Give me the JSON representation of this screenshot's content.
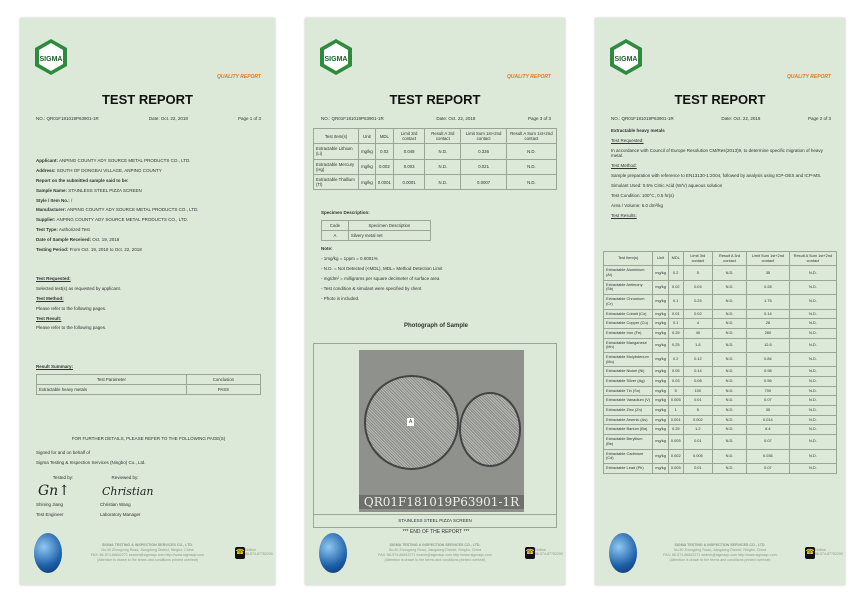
{
  "common": {
    "quality": "QUALITY REPORT",
    "title": "TEST REPORT",
    "no": "NO.: QR01F181019P63901-1R",
    "date": "Date: Oct. 22, 2018",
    "logo": "SIGMA",
    "footer": {
      "company": "SIGMA TESTING & INSPECTION SERVICES CO., LTD.",
      "address": "No.30 Zhongxing Road, Jiangdong District, Ningbo, China",
      "contact": "FAX: 86-574-86842271   search@sigmaqc.com   http://www.sigmaqc.com",
      "attention": "(Attention is drawn to the terms and conditions printed overleaf)",
      "hotline_label": "Hotline",
      "hotline": "86-574-87782290"
    }
  },
  "page1": {
    "page": "Page 1 of 3",
    "fields": [
      {
        "k": "Applicant:",
        "v": " ANPING COUNTY ADY SOURCE METAL PRODUCTS CO., LTD."
      },
      {
        "k": "Address:",
        "v": " SOUTH OF DONGBAI VILLAGE, ANPING COUNTY"
      },
      {
        "k": "Report on the submitted sample said to be:",
        "v": ""
      },
      {
        "k": "Sample Name:",
        "v": " STAINLESS STEEL PIZZA SCREEN"
      },
      {
        "k": "Style / Item No.:",
        "v": " /"
      },
      {
        "k": "Manufacturer:",
        "v": " ANPING COUNTY ADY SOURCE METAL PRODUCTS CO., LTD."
      },
      {
        "k": "Supplier:",
        "v": " ANPING COUNTY ADY SOURCE METAL PRODUCTS CO., LTD."
      },
      {
        "k": "Test Type:",
        "v": " Authorized Test"
      },
      {
        "k": "Date of Sample Received:",
        "v": " Oct. 19, 2018"
      },
      {
        "k": "Testing Period:",
        "v": " From Oct. 19, 2018 to Oct. 22, 2018"
      }
    ],
    "sections": [
      {
        "h": "Test Requested:",
        "t": "Selected test(s) as requested by applicant."
      },
      {
        "h": "Test Method:",
        "t": "Please refer to the following pages."
      },
      {
        "h": "Test Result:",
        "t": "Please refer to the following pages."
      }
    ],
    "summary_heading": "Result Summary:",
    "summary_headers": [
      "Test Parameter",
      "Conclusion"
    ],
    "summary_rows": [
      [
        "Extractable heavy metals",
        "PASS"
      ]
    ],
    "further": "FOR FURTHER DETAILS, PLEASE REFER TO THE FOLLOWING PAGE(S)",
    "signed1": "Signed for and on behalf of",
    "signed2": "Sigma Testing & Inspection Services (Ningbo) Co., Ltd.",
    "tested_by": "Tested by:",
    "reviewed_by": "Reviewed by:",
    "tester": "Shining Jiang",
    "tester_role": "Test Engineer",
    "reviewer": "Christian Wang",
    "reviewer_role": "Laboratory Manager"
  },
  "page2": {
    "page": "Page 3 of 3",
    "headers": [
      "Test Item(s)",
      "Unit",
      "MDL",
      "Limit 3rd contact",
      "Result A 3rd contact",
      "Limit Sum 1st+2nd contact",
      "Result A Sum 1st+2nd contact"
    ],
    "rows": [
      [
        "Extractable Lithium (Li)",
        "mg/kg",
        "0.02",
        "0.048",
        "N.D.",
        "0.336",
        "N.D."
      ],
      [
        "Extractable Mercury (Hg)",
        "mg/kg",
        "0.002",
        "0.003",
        "N.D.",
        "0.021",
        "N.D."
      ],
      [
        "Extractable Thallium (Tl)",
        "mg/kg",
        "0.0001",
        "0.0001",
        "N.D.",
        "0.0007",
        "N.D."
      ]
    ],
    "specimen_heading": "Specimen Description:",
    "specimen_headers": [
      "Code",
      "Specimen Description"
    ],
    "specimen_rows": [
      [
        "A",
        "Silvery metal net"
      ]
    ],
    "note_heading": "Note:",
    "notes": [
      "- 1mg/kg = 1ppm = 0.0001%",
      "- N.D. = Not Detected (<MDL), MDL= Method Detection Limit",
      "- mg/dm² = milligrams per square decimeter of surface area",
      "- Test condition & simulant were specified by client",
      "- Photo is included."
    ],
    "photo_heading": "Photograph of Sample",
    "photo_label": "A",
    "photo_code": "QR01F181019P63901-1R",
    "photo_caption": "STAINLESS STEEL PIZZA SCREEN",
    "end": "*** END OF THE REPORT ***"
  },
  "page3": {
    "page": "Page 2 of 3",
    "heading": "Extractable heavy metals",
    "lines": [
      {
        "u": "Test Requested:"
      },
      {
        "t": "In accordance with Council of Europe Resolution CM/Res(2013)9, to determine specific migration of heavy metal."
      },
      {
        "u": "Test Method:"
      },
      {
        "t": "Sample preparation with reference to EN13130-1:2004, followed by analysis using ICP-OES and ICP-MS."
      },
      {
        "t": "Simulant Used: 0.5% Citric Acid (W/V) aqueous solution"
      },
      {
        "t": "Test Condition: 100°C, 0.5 hr(s)"
      },
      {
        "t": "Area / Volume: 6.0 dm²/kg"
      },
      {
        "u": "Test Results:"
      }
    ],
    "headers": [
      "Test Item(s)",
      "Unit",
      "MDL",
      "Limit 3rd contact",
      "Result A 3rd contact",
      "Limit Sum 1st+2nd contact",
      "Result A Sum 1st+2nd contact"
    ],
    "rows": [
      [
        "Extractable Aluminium (Al)",
        "mg/kg",
        "0.2",
        "5",
        "N.D.",
        "35",
        "N.D."
      ],
      [
        "Extractable Antimony (Sb)",
        "mg/kg",
        "0.02",
        "0.04",
        "N.D.",
        "0.28",
        "N.D."
      ],
      [
        "Extractable Chromium (Cr)",
        "mg/kg",
        "0.1",
        "0.25",
        "N.D.",
        "1.75",
        "N.D."
      ],
      [
        "Extractable Cobalt (Co)",
        "mg/kg",
        "0.01",
        "0.02",
        "N.D.",
        "0.14",
        "N.D."
      ],
      [
        "Extractable Copper (Cu)",
        "mg/kg",
        "0.1",
        "4",
        "N.D.",
        "28",
        "N.D."
      ],
      [
        "Extractable Iron (Fe)",
        "mg/kg",
        "0.25",
        "40",
        "N.D.",
        "280",
        "N.D."
      ],
      [
        "Extractable Manganese (Mn)",
        "mg/kg",
        "0.25",
        "1.8",
        "N.D.",
        "12.6",
        "N.D."
      ],
      [
        "Extractable Molybdenum (Mo)",
        "mg/kg",
        "0.2",
        "0.12",
        "N.D.",
        "0.84",
        "N.D."
      ],
      [
        "Extractable Nickel (Ni)",
        "mg/kg",
        "0.05",
        "0.14",
        "N.D.",
        "0.98",
        "N.D."
      ],
      [
        "Extractable Silver (Ag)",
        "mg/kg",
        "0.03",
        "0.08",
        "N.D.",
        "0.56",
        "N.D."
      ],
      [
        "Extractable Tin (Sn)",
        "mg/kg",
        "5",
        "100",
        "N.D.",
        "700",
        "N.D."
      ],
      [
        "Extractable Vanadium (V)",
        "mg/kg",
        "0.005",
        "0.01",
        "N.D.",
        "0.07",
        "N.D."
      ],
      [
        "Extractable Zinc (Zn)",
        "mg/kg",
        "1",
        "5",
        "N.D.",
        "35",
        "N.D."
      ],
      [
        "Extractable Arsenic (As)",
        "mg/kg",
        "0.001",
        "0.002",
        "N.D.",
        "0.014",
        "N.D."
      ],
      [
        "Extractable Barium (Ba)",
        "mg/kg",
        "0.25",
        "1.2",
        "N.D.",
        "8.4",
        "N.D."
      ],
      [
        "Extractable Beryllium (Be)",
        "mg/kg",
        "0.005",
        "0.01",
        "N.D.",
        "0.07",
        "N.D."
      ],
      [
        "Extractable Cadmium (Cd)",
        "mg/kg",
        "0.002",
        "0.005",
        "N.D.",
        "0.035",
        "N.D."
      ],
      [
        "Extractable Lead (Pb)",
        "mg/kg",
        "0.005",
        "0.01",
        "N.D.",
        "0.07",
        "N.D."
      ]
    ]
  }
}
